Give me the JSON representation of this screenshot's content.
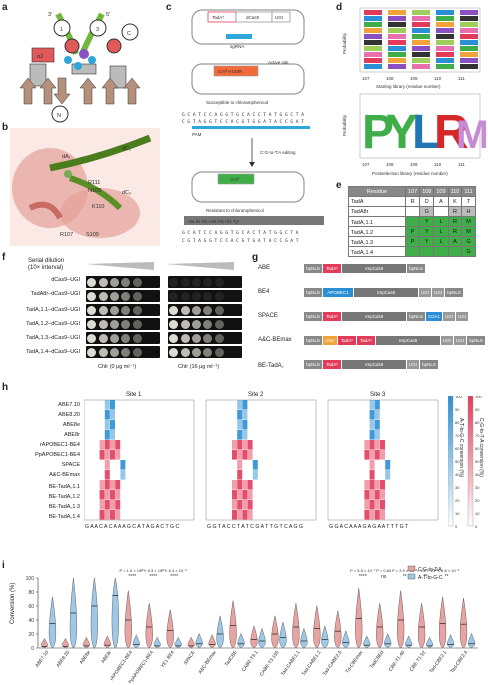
{
  "panels": {
    "a": "a",
    "b": "b",
    "c": "c",
    "d": "d",
    "e": "e",
    "f": "f",
    "g": "g",
    "h": "h",
    "i": "i"
  },
  "panel_a": {
    "strand_3": "3′",
    "strand_5": "5′",
    "circles": [
      "1",
      "2",
      "3",
      "4",
      "5",
      "6",
      "7",
      "N",
      "C"
    ]
  },
  "panel_b": {
    "labels": [
      "dA₁",
      "dC₁",
      "dC₂",
      "R111",
      "N108",
      "K110",
      "R107",
      "S109"
    ]
  },
  "panel_c": {
    "plasmid1": {
      "tad": "TadA*",
      "dcas": "dCas9",
      "ugi": "UGI",
      "sgrna": "sgRNA"
    },
    "plasmid2": {
      "gene": "Cmᴿ H193R",
      "note": "Active site"
    },
    "caption1": "Susceptible to chloramphenicol",
    "seq1_top": "G C A T C C A G G T G C A C C T A T G G C T A",
    "seq1_bot": "C G T A G G T C C A C G T G G A T A C C G A T",
    "pam": "PAM",
    "edit": "C:G-to-T:A editing",
    "plasmid3": {
      "gene": "Cmᴿ"
    },
    "caption2": "Resistant to chloramphenicol",
    "aa": [
      "Ala",
      "Ile",
      "Gln",
      "Val",
      "His",
      "Arg",
      "Tyr"
    ],
    "aa2": [
      "Ala",
      "Ile",
      "Gln",
      "Val",
      "His",
      "His",
      "Tyr"
    ],
    "seq2_top": "G C A T C C A G G T G C A C T A T G G C T A",
    "seq2_bot": "C G T A G G T C C A C G T G A T A C C G A T"
  },
  "panel_d": {
    "ylabel": "Probability",
    "yticks": [
      "0",
      "0.5",
      "1.0"
    ],
    "xticks": [
      "107",
      "108",
      "109",
      "110",
      "111"
    ],
    "xlabel1": "Starting library (residue number)",
    "xlabel2": "Postselection library (residue number)",
    "post_letters": [
      "P",
      "Y",
      "L",
      "R",
      "M"
    ]
  },
  "panel_e": {
    "headers": [
      "Residue",
      "107",
      "108",
      "109",
      "110",
      "111"
    ],
    "rows": [
      [
        "TadA",
        "R",
        "D",
        "A",
        "K",
        "T"
      ],
      [
        "TadA8r",
        "",
        "G",
        "",
        "R",
        "H"
      ],
      [
        "TadA꜀1.1",
        "",
        "Y",
        "L",
        "R",
        "M"
      ],
      [
        "TadA꜀1.2",
        "P",
        "Y",
        "L",
        "R",
        "M"
      ],
      [
        "TadA꜀1.3",
        "P",
        "Y",
        "L",
        "A",
        "G"
      ],
      [
        "TadA꜀1.4",
        "",
        "",
        "",
        "",
        "G"
      ]
    ]
  },
  "panel_f": {
    "title": "Serial dilution",
    "subtitle": "(10× interval)",
    "rows": [
      "dCas9–UGI",
      "TadA8r–dCas9–UGI",
      "TadA꜀1.1–dCas9–UGI",
      "TadA꜀1.2–dCas9–UGI",
      "TadA꜀1.3–dCas9–UGI",
      "TadA꜀1.4–dCas9–UGI"
    ],
    "xlabel_left": "Chlr (0 μg ml⁻¹)",
    "xlabel_right": "Chlr (16 μg ml⁻¹)"
  },
  "panel_g": {
    "rows": [
      {
        "name": "ABE",
        "parts": [
          "bpNLS",
          "TadA*",
          "nSpCas9",
          "bpNLS"
        ]
      },
      {
        "name": "BE4",
        "parts": [
          "bpNLS",
          "APOBEC1",
          "nSpCas9",
          "UGI",
          "UGI",
          "bpNLS"
        ]
      },
      {
        "name": "SPACE",
        "parts": [
          "bpNLS",
          "TadA*",
          "nSpCas9",
          "bpNLS",
          "CDA1",
          "UGI",
          "UGI"
        ]
      },
      {
        "name": "A&C-BEmax",
        "parts": [
          "bpNLS",
          "rAID",
          "TadA*",
          "TadA*",
          "nSpCas9",
          "UGI",
          "UGI",
          "bpNLS"
        ]
      },
      {
        "name": "BE-TadA꜀",
        "parts": [
          "bpNLS",
          "TadA*",
          "nSpCas9",
          "UGI",
          "bpNLS"
        ]
      }
    ]
  },
  "panel_h": {
    "sites": [
      "Site 1",
      "Site 2",
      "Site 3"
    ],
    "rows": [
      "ABE7.10",
      "ABE8.20",
      "ABE8e",
      "ABE8r",
      "rAPOBEC1-BE4",
      "PpAPOBEC1-BE4",
      "SPACE",
      "A&C-BEmax",
      "BE-TadA꜀1.1",
      "BE-TadA꜀1.2",
      "BE-TadA꜀1.3",
      "BE-TadA꜀1.4"
    ],
    "seq1": "G A A C A C A A A G C A T A G A C T G C",
    "seq2": "G G T A C C T A T C G A T T G T C A G G",
    "seq3": "G G A C A A A G A G A A T T T G T",
    "scale_left": "A-T-to-G-C conversion (%)",
    "scale_right": "C-G-to-T-A conversion (%)",
    "scale_ticks": [
      "0",
      "10",
      "20",
      "30",
      "40",
      "50",
      "60",
      "70",
      "80",
      "90",
      "100"
    ],
    "colors": {
      "blue": "#2b8fd6",
      "red": "#e23b5a"
    }
  },
  "panel_i": {
    "ylabel": "Conversion (%)",
    "yticks": [
      "0",
      "20",
      "40",
      "60",
      "80",
      "100"
    ],
    "legend": [
      "C:G-to-T:A",
      "A-T-to-G-C"
    ],
    "colors": {
      "ct": "#e8a3a3",
      "at": "#9fc7e6"
    },
    "groups": [
      "ABE7.10",
      "ABE8.20",
      "ABE8e",
      "ABE8r",
      "rAPOBEC1-BE4",
      "PpAPOBEC1-BE4",
      "YE1 BE4",
      "SPACE",
      "A&C-BEmax",
      "TadCBE",
      "CABE-T3.1",
      "CABE-T3.155",
      "Tad-CABE1.1",
      "Tad-CABE1.2",
      "Tad-CABE2.5",
      "Td-CBEmax",
      "TadCBEd",
      "CBE-T1.46",
      "CBE-T1.52",
      "Tad-CBE2.1",
      "Tad-CBE2.4"
    ],
    "pvals": [
      {
        "g": 4,
        "p": "P = 1.0 × 10⁻⁸",
        "s": "****"
      },
      {
        "g": 5,
        "p": "P = 6.3 × 10⁻⁸",
        "s": "****"
      },
      {
        "g": 6,
        "p": "P = 6.3 × 10⁻⁸",
        "s": "****"
      },
      {
        "g": 15,
        "p": "P = 5.5 × 10⁻⁷",
        "s": "****"
      },
      {
        "g": 16,
        "p": "P = 0.84",
        "s": "ns"
      },
      {
        "g": 17,
        "p": "P = 3.9 × 10⁻³",
        "s": "**"
      },
      {
        "g": 18,
        "p": "P = 1.6 × 10⁻³",
        "s": "**"
      },
      {
        "g": 19,
        "p": "P = 6.8 × 10⁻³",
        "s": "**"
      }
    ]
  },
  "chart_data": [
    {
      "type": "violin",
      "title": "",
      "ylabel": "Conversion (%)",
      "ylim": [
        0,
        100
      ],
      "categories": [
        "ABE7.10",
        "ABE8.20",
        "ABE8e",
        "ABE8r",
        "rAPOBEC1-BE4",
        "PpAPOBEC1-BE4",
        "YE1 BE4",
        "SPACE",
        "A&C-BEmax",
        "TadCBE",
        "CABE-T3.1",
        "CABE-T3.155",
        "Tad-CABE1.1",
        "Tad-CABE1.2",
        "Tad-CABE2.5",
        "Td-CBEmax",
        "TadCBEd",
        "CBE-T1.46",
        "CBE-T1.52",
        "Tad-CBE2.1",
        "Tad-CBE2.4"
      ],
      "series": [
        {
          "name": "C:G-to-T:A",
          "medians": [
            2,
            2,
            3,
            4,
            40,
            30,
            25,
            3,
            5,
            32,
            12,
            20,
            30,
            28,
            24,
            42,
            30,
            40,
            30,
            35,
            34
          ]
        },
        {
          "name": "A-T-to-G-C",
          "medians": [
            35,
            50,
            60,
            75,
            5,
            3,
            3,
            6,
            20,
            6,
            10,
            15,
            10,
            12,
            8,
            4,
            6,
            4,
            3,
            5,
            6
          ]
        }
      ]
    }
  ]
}
